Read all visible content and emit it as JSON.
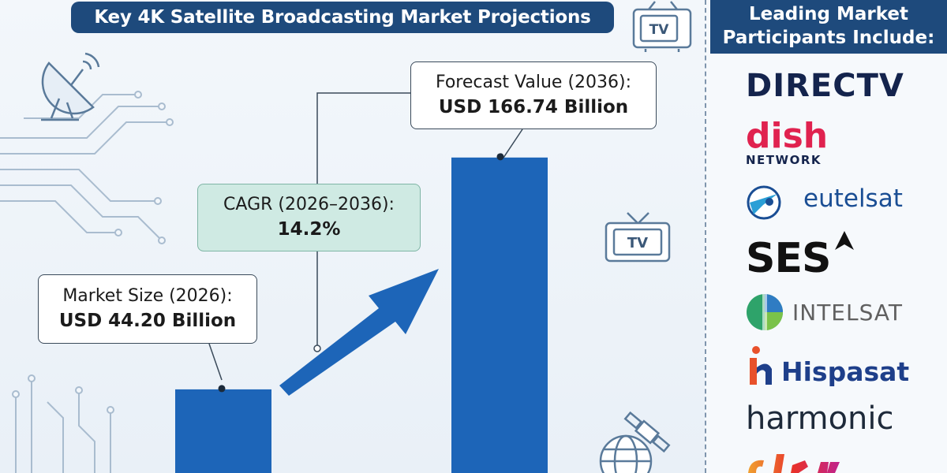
{
  "title": "Key 4K Satellite Broadcasting Market Projections",
  "callouts": {
    "market_size": {
      "label": "Market Size (2026):",
      "value": "USD 44.20 Billion"
    },
    "cagr": {
      "label": "CAGR (2026–2036):",
      "value": "14.2%"
    },
    "forecast": {
      "label": "Forecast Value (2036):",
      "value": "USD 166.74 Billion"
    }
  },
  "icons": {
    "tv_label": "TV"
  },
  "participants": {
    "header_line1": "Leading Market",
    "header_line2": "Participants Include:",
    "logos": [
      {
        "name": "DIRECTV",
        "color": "#14244d"
      },
      {
        "name": "dish",
        "sub": "NETWORK",
        "color": "#e0224f"
      },
      {
        "name": "eutelsat",
        "color": "#1a4e94"
      },
      {
        "name": "SES",
        "color": "#111111"
      },
      {
        "name": "INTELSAT",
        "color": "#606060"
      },
      {
        "name": "Hispasat",
        "color": "#1e3f8a"
      },
      {
        "name": "harmonic",
        "color": "#1e2a3a"
      }
    ]
  },
  "colors": {
    "bar": "#1d65b8",
    "banner": "#1e4a7c",
    "arrow": "#1d65b8"
  },
  "chart_data": {
    "type": "bar",
    "categories": [
      "2026",
      "2036"
    ],
    "values": [
      44.2,
      166.74
    ],
    "title": "Key 4K Satellite Broadcasting Market Projections",
    "ylim": [
      0,
      250
    ],
    "grid": false,
    "legend": "none"
  }
}
